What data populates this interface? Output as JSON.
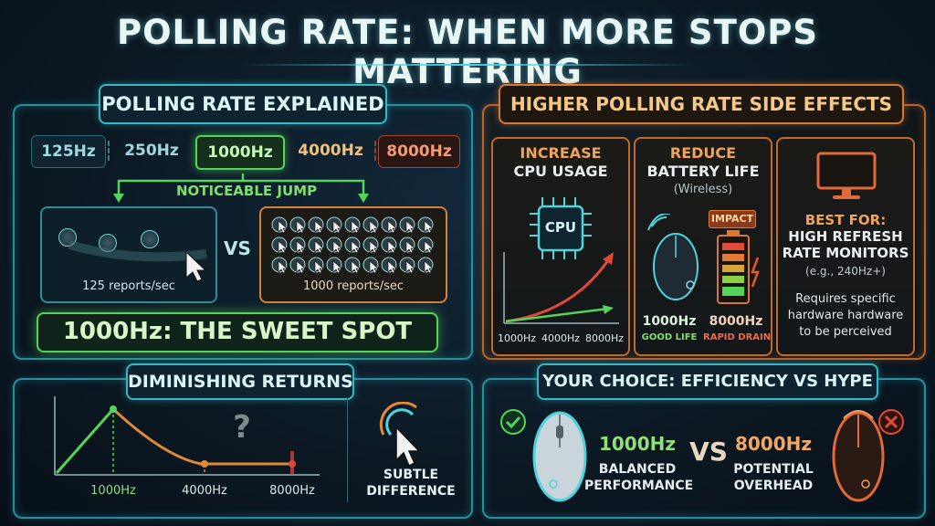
{
  "title": "POLLING RATE: WHEN MORE STOPS MATTERING",
  "explained": {
    "heading": "POLLING RATE EXPLAINED",
    "rates": [
      "125Hz",
      "250Hz",
      "1000Hz",
      "4000Hz",
      "8000Hz"
    ],
    "jump_label": "NOTICEABLE JUMP",
    "low_caption": "125 reports/sec",
    "vs": "VS",
    "high_caption": "1000 reports/sec",
    "sweet_spot": "1000Hz: THE SWEET SPOT"
  },
  "side_effects": {
    "heading": "HIGHER POLLING RATE SIDE EFFECTS",
    "cpu": {
      "line1": "INCREASE",
      "line2": "CPU USAGE",
      "chip": "CPU",
      "axis": [
        "1000Hz",
        "4000Hz",
        "8000Hz"
      ]
    },
    "battery": {
      "line1": "REDUCE",
      "line2": "BATTERY LIFE",
      "note": "(Wireless)",
      "impact": "IMPACT",
      "left_hz": "1000Hz",
      "left_desc": "GOOD LIFE",
      "right_hz": "8000Hz",
      "right_desc": "RAPID DRAIN"
    },
    "best": {
      "label": "BEST FOR:",
      "line1": "HIGH REFRESH",
      "line2": "RATE MONITORS",
      "example": "(e.g., 240Hz+)",
      "note1": "Requires specific",
      "note2": "hardware hardware",
      "note3": "to be perceived"
    }
  },
  "diminishing": {
    "heading": "DIMINISHING RETURNS",
    "axis": [
      "1000Hz",
      "4000Hz",
      "8000Hz"
    ],
    "question": "?",
    "subtle1": "SUBTLE",
    "subtle2": "DIFFERENCE"
  },
  "choice": {
    "heading": "YOUR CHOICE: EFFICIENCY VS HYPE",
    "left_hz": "1000Hz",
    "left_l1": "BALANCED",
    "left_l2": "PERFORMANCE",
    "vs": "VS",
    "right_hz": "8000Hz",
    "right_l1": "POTENTIAL",
    "right_l2": "OVERHEAD"
  },
  "colors": {
    "teal": "#36b7c4",
    "green": "#55d45a",
    "orange": "#d47a35",
    "red": "#e04a3a"
  }
}
